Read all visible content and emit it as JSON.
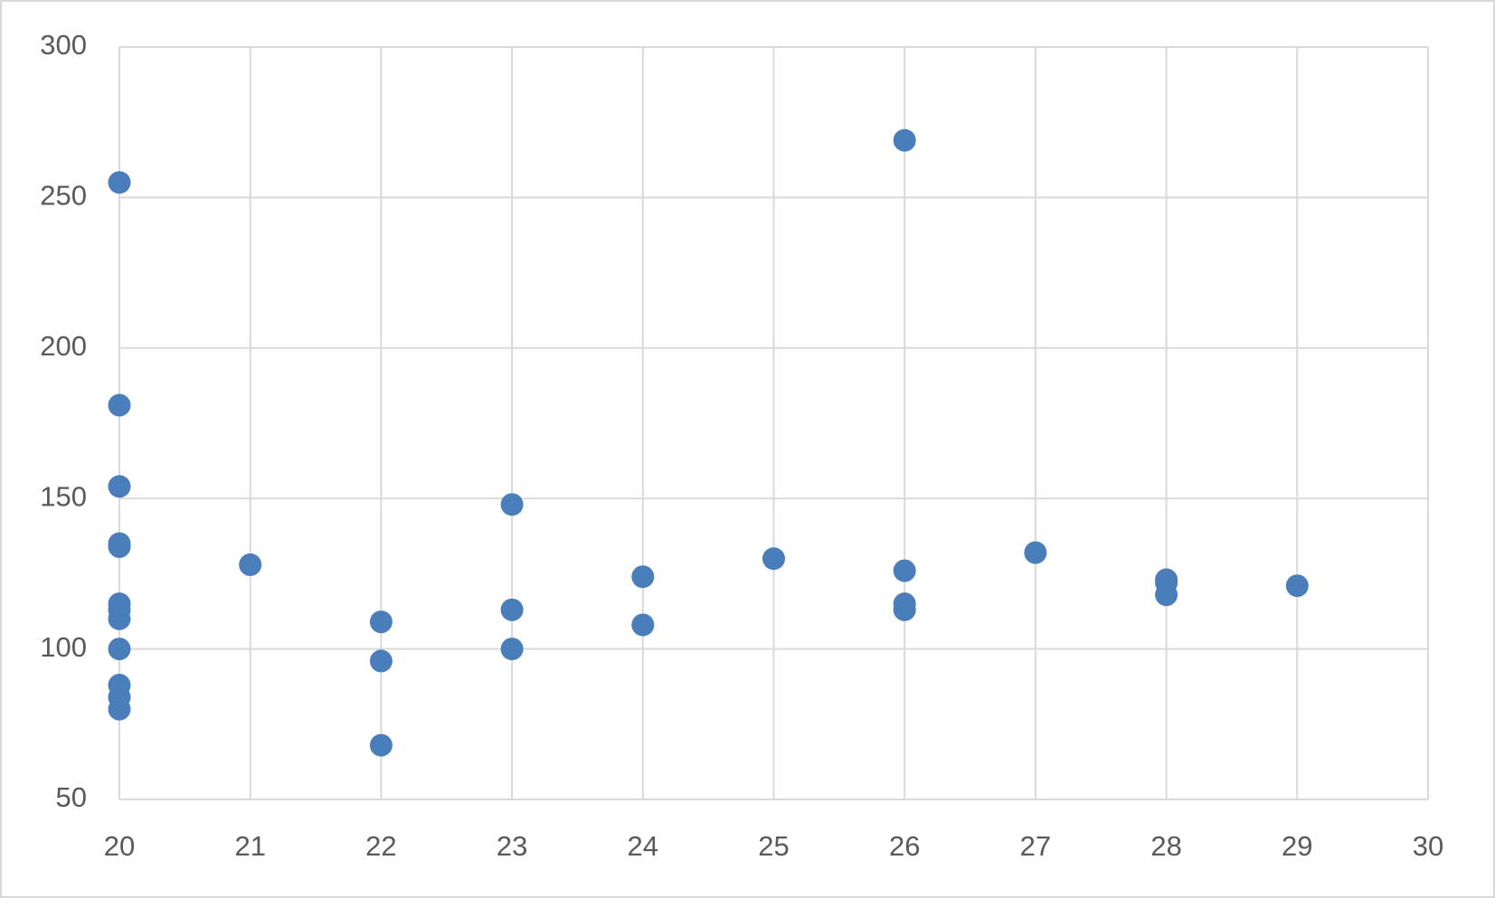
{
  "chart_data": {
    "type": "scatter",
    "x": [
      20,
      20,
      20,
      20,
      20,
      20,
      20,
      20,
      20,
      20,
      20,
      20,
      21,
      22,
      22,
      22,
      23,
      23,
      23,
      24,
      24,
      25,
      26,
      26,
      26,
      26,
      27,
      28,
      28,
      28,
      29
    ],
    "series": [
      {
        "color": "#4a7ebb",
        "values": [
          255,
          181,
          154,
          135,
          134,
          115,
          113,
          110,
          100,
          88,
          84,
          80,
          128,
          109,
          96,
          68,
          148,
          113,
          100,
          124,
          108,
          130,
          269,
          126,
          115,
          113,
          132,
          123,
          122,
          118,
          121
        ]
      }
    ],
    "xlim": [
      20,
      30
    ],
    "xticks": [
      20,
      21,
      22,
      23,
      24,
      25,
      26,
      27,
      28,
      29,
      30
    ],
    "ylim": [
      50,
      300
    ],
    "yticks": [
      50,
      100,
      150,
      200,
      250,
      300
    ],
    "grid": true
  }
}
